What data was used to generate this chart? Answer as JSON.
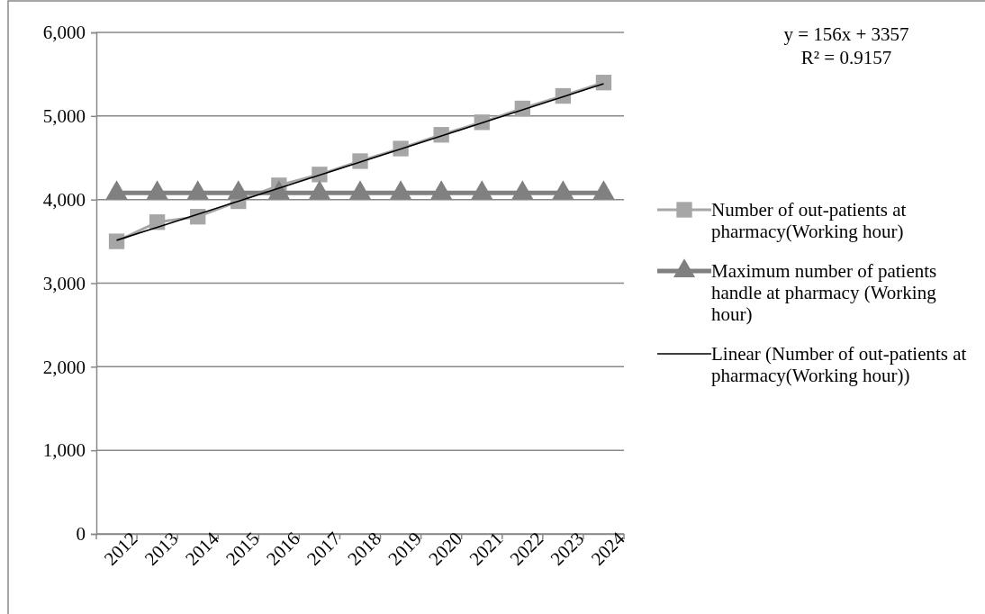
{
  "chart_data": {
    "type": "line",
    "categories": [
      "2012",
      "2013",
      "2014",
      "2015",
      "2016",
      "2017",
      "2018",
      "2019",
      "2020",
      "2021",
      "2022",
      "2023",
      "2024"
    ],
    "series": [
      {
        "name": "Number of out-patients at pharmacy(Working hour)",
        "color": "#a6a6a6",
        "marker": "square",
        "values": [
          3500,
          3730,
          3795,
          3980,
          4170,
          4300,
          4460,
          4610,
          4775,
          4925,
          5090,
          5240,
          5400
        ]
      },
      {
        "name": "Maximum number of patients handle at pharmacy (Working hour)",
        "color": "#808080",
        "marker": "triangle",
        "values": [
          4080,
          4080,
          4080,
          4080,
          4080,
          4080,
          4080,
          4080,
          4080,
          4080,
          4080,
          4080,
          4080
        ]
      },
      {
        "name": "Linear (Number of out-patients at pharmacy(Working hour))",
        "color": "#000000",
        "marker": "none",
        "values": [
          3513,
          3669,
          3825,
          3981,
          4137,
          4293,
          4449,
          4605,
          4761,
          4917,
          5073,
          5229,
          5385
        ]
      }
    ],
    "ylim": [
      0,
      6000
    ],
    "yticks": [
      {
        "value": 0,
        "label": "0"
      },
      {
        "value": 1000,
        "label": "1,000"
      },
      {
        "value": 2000,
        "label": "2,000"
      },
      {
        "value": 3000,
        "label": "3,000"
      },
      {
        "value": 4000,
        "label": "4,000"
      },
      {
        "value": 5000,
        "label": "5,000"
      },
      {
        "value": 6000,
        "label": "6,000"
      }
    ],
    "grid": "y",
    "legend": "right",
    "annotations": [
      "y = 156x + 3357",
      "R² = 0.9157"
    ]
  }
}
